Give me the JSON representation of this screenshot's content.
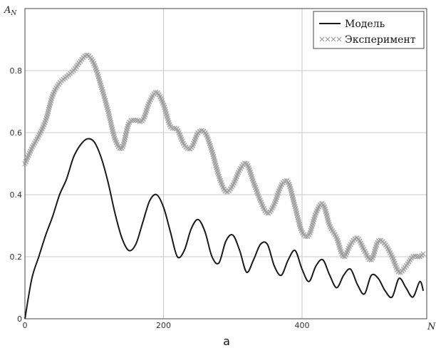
{
  "chart_data": {
    "type": "line",
    "ylabel": "A",
    "ylabel_sub": "N",
    "xlabel": "N",
    "caption": "а",
    "xlim": [
      0,
      580
    ],
    "ylim": [
      0,
      1.0
    ],
    "x_ticks": [
      0,
      200,
      400
    ],
    "y_ticks": [
      0,
      0.2,
      0.4,
      0.6,
      0.8
    ],
    "x_tick_labels": [
      "0",
      "200",
      "400"
    ],
    "y_tick_labels": [
      "0",
      "0.2",
      "0.4",
      "0.6",
      "0.8"
    ],
    "grid": true,
    "legend_position": "top-right",
    "series": [
      {
        "name": "Модель",
        "style": "solid",
        "color": "#1a1a1a",
        "x": [
          0,
          10,
          20,
          30,
          40,
          50,
          60,
          70,
          80,
          90,
          100,
          110,
          120,
          130,
          140,
          150,
          160,
          170,
          180,
          190,
          200,
          210,
          220,
          230,
          240,
          250,
          260,
          270,
          280,
          290,
          300,
          310,
          320,
          330,
          340,
          350,
          360,
          370,
          380,
          390,
          400,
          410,
          420,
          430,
          440,
          450,
          460,
          470,
          480,
          490,
          500,
          510,
          520,
          530,
          540,
          550,
          560,
          570,
          575
        ],
        "y": [
          0.0,
          0.13,
          0.2,
          0.27,
          0.33,
          0.4,
          0.45,
          0.52,
          0.56,
          0.58,
          0.57,
          0.52,
          0.44,
          0.34,
          0.26,
          0.22,
          0.24,
          0.31,
          0.38,
          0.4,
          0.36,
          0.28,
          0.2,
          0.22,
          0.29,
          0.32,
          0.28,
          0.2,
          0.18,
          0.25,
          0.27,
          0.22,
          0.15,
          0.19,
          0.24,
          0.24,
          0.17,
          0.14,
          0.19,
          0.22,
          0.16,
          0.12,
          0.17,
          0.19,
          0.14,
          0.1,
          0.14,
          0.16,
          0.11,
          0.08,
          0.14,
          0.13,
          0.09,
          0.07,
          0.13,
          0.1,
          0.07,
          0.12,
          0.09
        ]
      },
      {
        "name": "Эксперимент",
        "style": "markers-x",
        "color": "#999999",
        "x": [
          0,
          10,
          20,
          30,
          40,
          50,
          60,
          70,
          80,
          90,
          100,
          110,
          120,
          130,
          140,
          150,
          160,
          170,
          180,
          190,
          200,
          210,
          220,
          230,
          240,
          250,
          260,
          270,
          280,
          290,
          300,
          310,
          320,
          330,
          340,
          350,
          360,
          370,
          380,
          390,
          400,
          410,
          420,
          430,
          440,
          450,
          460,
          470,
          480,
          490,
          500,
          510,
          520,
          530,
          540,
          550,
          560,
          570,
          575
        ],
        "y": [
          0.5,
          0.55,
          0.59,
          0.64,
          0.72,
          0.76,
          0.78,
          0.8,
          0.83,
          0.85,
          0.82,
          0.75,
          0.67,
          0.58,
          0.55,
          0.63,
          0.64,
          0.64,
          0.7,
          0.73,
          0.69,
          0.62,
          0.61,
          0.56,
          0.55,
          0.6,
          0.6,
          0.54,
          0.46,
          0.41,
          0.43,
          0.48,
          0.5,
          0.44,
          0.38,
          0.34,
          0.37,
          0.43,
          0.44,
          0.36,
          0.28,
          0.27,
          0.34,
          0.37,
          0.3,
          0.26,
          0.2,
          0.24,
          0.26,
          0.22,
          0.19,
          0.25,
          0.24,
          0.2,
          0.15,
          0.17,
          0.2,
          0.2,
          0.21
        ]
      }
    ]
  }
}
